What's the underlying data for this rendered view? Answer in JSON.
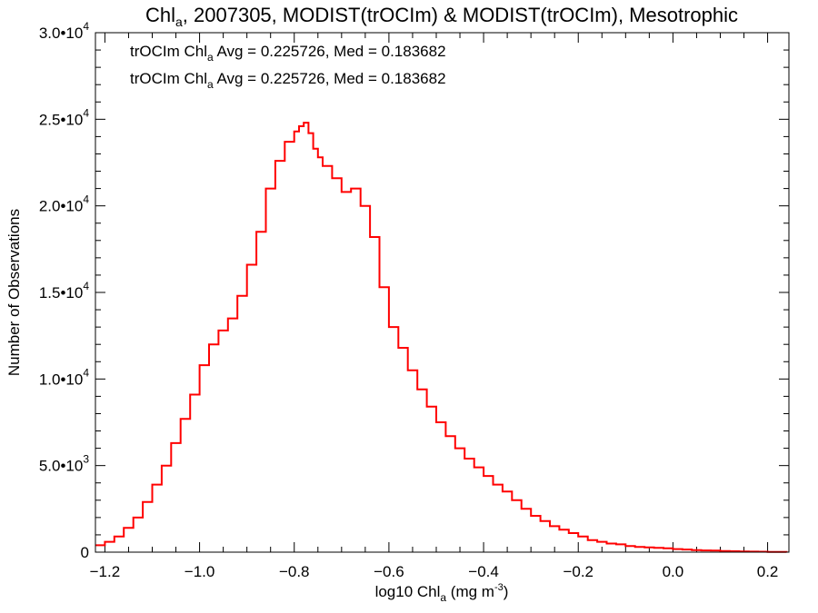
{
  "chart_data": {
    "type": "line",
    "style": "step histogram",
    "title": {
      "prefix": "Chl",
      "sub": "a",
      "rest": ", 2007305, MODIST(trOCIm) & MODIST(trOCIm), Mesotrophic"
    },
    "xlabel": {
      "prefix": "log10 Chl",
      "sub": "a",
      "mid": " (mg m",
      "sup": "-3",
      "end": ")"
    },
    "ylabel": "Number of Observations",
    "xlim": [
      -1.22,
      0.245
    ],
    "ylim": [
      0,
      30000
    ],
    "x_ticks": [
      -1.2,
      -1.0,
      -0.8,
      -0.6,
      -0.4,
      -0.2,
      0.0,
      0.2
    ],
    "x_tick_labels": [
      "−1.2",
      "−1.0",
      "−0.8",
      "−0.6",
      "−0.4",
      "−0.2",
      "0.0",
      "0.2"
    ],
    "y_ticks": [
      0,
      5000,
      10000,
      15000,
      20000,
      25000,
      30000
    ],
    "y_tick_labels": [
      {
        "base": "0",
        "exp": ""
      },
      {
        "base": "5.0•10",
        "exp": "3"
      },
      {
        "base": "1.0•10",
        "exp": "4"
      },
      {
        "base": "1.5•10",
        "exp": "4"
      },
      {
        "base": "2.0•10",
        "exp": "4"
      },
      {
        "base": "2.5•10",
        "exp": "4"
      },
      {
        "base": "3.0•10",
        "exp": "4"
      }
    ],
    "grid": false,
    "legend_position": "top-left",
    "legend": [
      {
        "prefix": "trOCIm Chl",
        "sub": "a",
        "rest": " Avg = 0.225726, Med = 0.183682",
        "color": "#000000"
      },
      {
        "prefix": "trOCIm Chl",
        "sub": "a",
        "rest": " Avg = 0.225726, Med = 0.183682",
        "color": "#ff0000"
      }
    ],
    "series": [
      {
        "color": "#ff0000",
        "x": [
          -1.22,
          -1.2,
          -1.18,
          -1.16,
          -1.14,
          -1.12,
          -1.1,
          -1.08,
          -1.06,
          -1.04,
          -1.02,
          -1.0,
          -0.98,
          -0.96,
          -0.94,
          -0.92,
          -0.9,
          -0.88,
          -0.86,
          -0.84,
          -0.82,
          -0.8,
          -0.79,
          -0.78,
          -0.77,
          -0.76,
          -0.75,
          -0.74,
          -0.72,
          -0.7,
          -0.68,
          -0.66,
          -0.64,
          -0.62,
          -0.6,
          -0.58,
          -0.56,
          -0.54,
          -0.52,
          -0.5,
          -0.48,
          -0.46,
          -0.44,
          -0.42,
          -0.4,
          -0.38,
          -0.36,
          -0.34,
          -0.32,
          -0.3,
          -0.28,
          -0.26,
          -0.24,
          -0.22,
          -0.2,
          -0.18,
          -0.16,
          -0.14,
          -0.12,
          -0.1,
          -0.08,
          -0.06,
          -0.04,
          -0.02,
          0.0,
          0.02,
          0.04,
          0.06,
          0.08,
          0.1,
          0.12,
          0.14,
          0.16,
          0.18,
          0.2,
          0.22,
          0.24
        ],
        "y": [
          400,
          600,
          900,
          1400,
          2000,
          2900,
          3900,
          5000,
          6300,
          7700,
          9100,
          10800,
          12000,
          12800,
          13500,
          14800,
          16600,
          18500,
          21000,
          22600,
          23700,
          24300,
          24600,
          24800,
          24200,
          23300,
          22800,
          22300,
          21600,
          20800,
          21000,
          20000,
          18200,
          15300,
          13000,
          11800,
          10500,
          9400,
          8400,
          7500,
          6700,
          6000,
          5400,
          4900,
          4400,
          3900,
          3500,
          3000,
          2500,
          2100,
          1800,
          1500,
          1300,
          1100,
          900,
          700,
          600,
          500,
          450,
          350,
          300,
          280,
          250,
          220,
          180,
          150,
          120,
          100,
          90,
          70,
          50,
          40,
          30,
          25,
          15,
          10,
          5
        ]
      }
    ]
  }
}
